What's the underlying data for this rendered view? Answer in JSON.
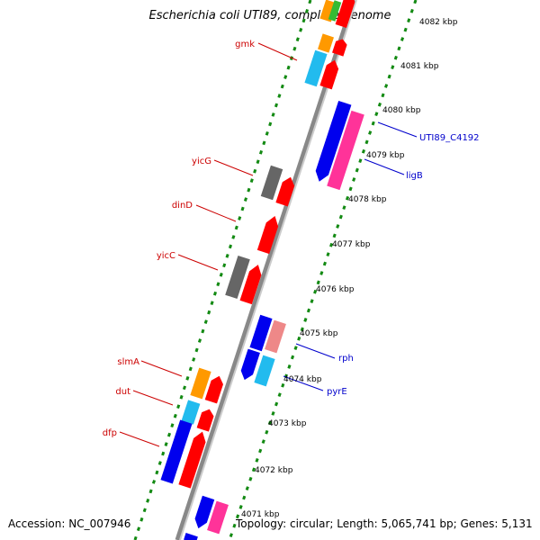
{
  "title": "Escherichia coli UTI89, complete genome",
  "footer": {
    "accession": "Accession: NC_007946",
    "topology": "Topology: circular; Length: 5,065,741 bp; Genes: 5,131"
  },
  "colors": {
    "backbone": "#888888",
    "tick": "#138a13",
    "label_reverse": "#cc0000",
    "label_forward": "#0000cc",
    "red": "#ff0000",
    "blue": "#0000ee",
    "cyan": "#22bbee",
    "orange": "#ff9900",
    "pink": "#ff3399",
    "salmon": "#ee8888",
    "gray": "#666666",
    "green": "#33bb33"
  },
  "kbp_labels": [
    "4082 kbp",
    "4081 kbp",
    "4080 kbp",
    "4079 kbp",
    "4078 kbp",
    "4077 kbp",
    "4076 kbp",
    "4075 kbp",
    "4074 kbp",
    "4073 kbp",
    "4072 kbp",
    "4071 kbp"
  ],
  "gene_labels": {
    "gmk": "gmk",
    "UTI89_C4192": "UTI89_C4192",
    "ligB": "ligB",
    "yicG": "yicG",
    "dinD": "dinD",
    "yicC": "yicC",
    "rph": "rph",
    "pyrE": "pyrE",
    "slmA": "slmA",
    "dut": "dut",
    "dfp": "dfp"
  }
}
